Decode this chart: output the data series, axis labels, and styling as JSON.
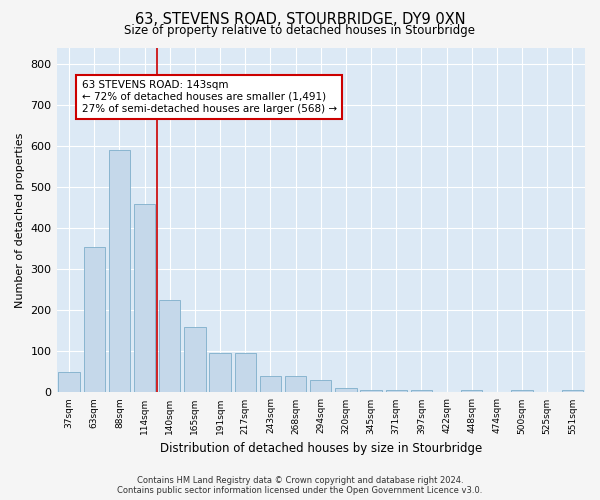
{
  "title": "63, STEVENS ROAD, STOURBRIDGE, DY9 0XN",
  "subtitle": "Size of property relative to detached houses in Stourbridge",
  "xlabel": "Distribution of detached houses by size in Stourbridge",
  "ylabel": "Number of detached properties",
  "categories": [
    "37sqm",
    "63sqm",
    "88sqm",
    "114sqm",
    "140sqm",
    "165sqm",
    "191sqm",
    "217sqm",
    "243sqm",
    "268sqm",
    "294sqm",
    "320sqm",
    "345sqm",
    "371sqm",
    "397sqm",
    "422sqm",
    "448sqm",
    "474sqm",
    "500sqm",
    "525sqm",
    "551sqm"
  ],
  "values": [
    50,
    355,
    590,
    460,
    225,
    160,
    95,
    95,
    40,
    40,
    30,
    10,
    5,
    5,
    5,
    0,
    5,
    0,
    5,
    0,
    5
  ],
  "bar_color": "#c5d8ea",
  "bar_edge_color": "#7eaecb",
  "plot_bg_color": "#dce9f5",
  "grid_color": "#ffffff",
  "red_line_x": 3.5,
  "annotation_text": "63 STEVENS ROAD: 143sqm\n← 72% of detached houses are smaller (1,491)\n27% of semi-detached houses are larger (568) →",
  "annotation_box_color": "#ffffff",
  "annotation_box_edge": "#cc0000",
  "footer_line1": "Contains HM Land Registry data © Crown copyright and database right 2024.",
  "footer_line2": "Contains public sector information licensed under the Open Government Licence v3.0.",
  "fig_bg_color": "#f5f5f5",
  "ylim": [
    0,
    840
  ],
  "yticks": [
    0,
    100,
    200,
    300,
    400,
    500,
    600,
    700,
    800
  ]
}
